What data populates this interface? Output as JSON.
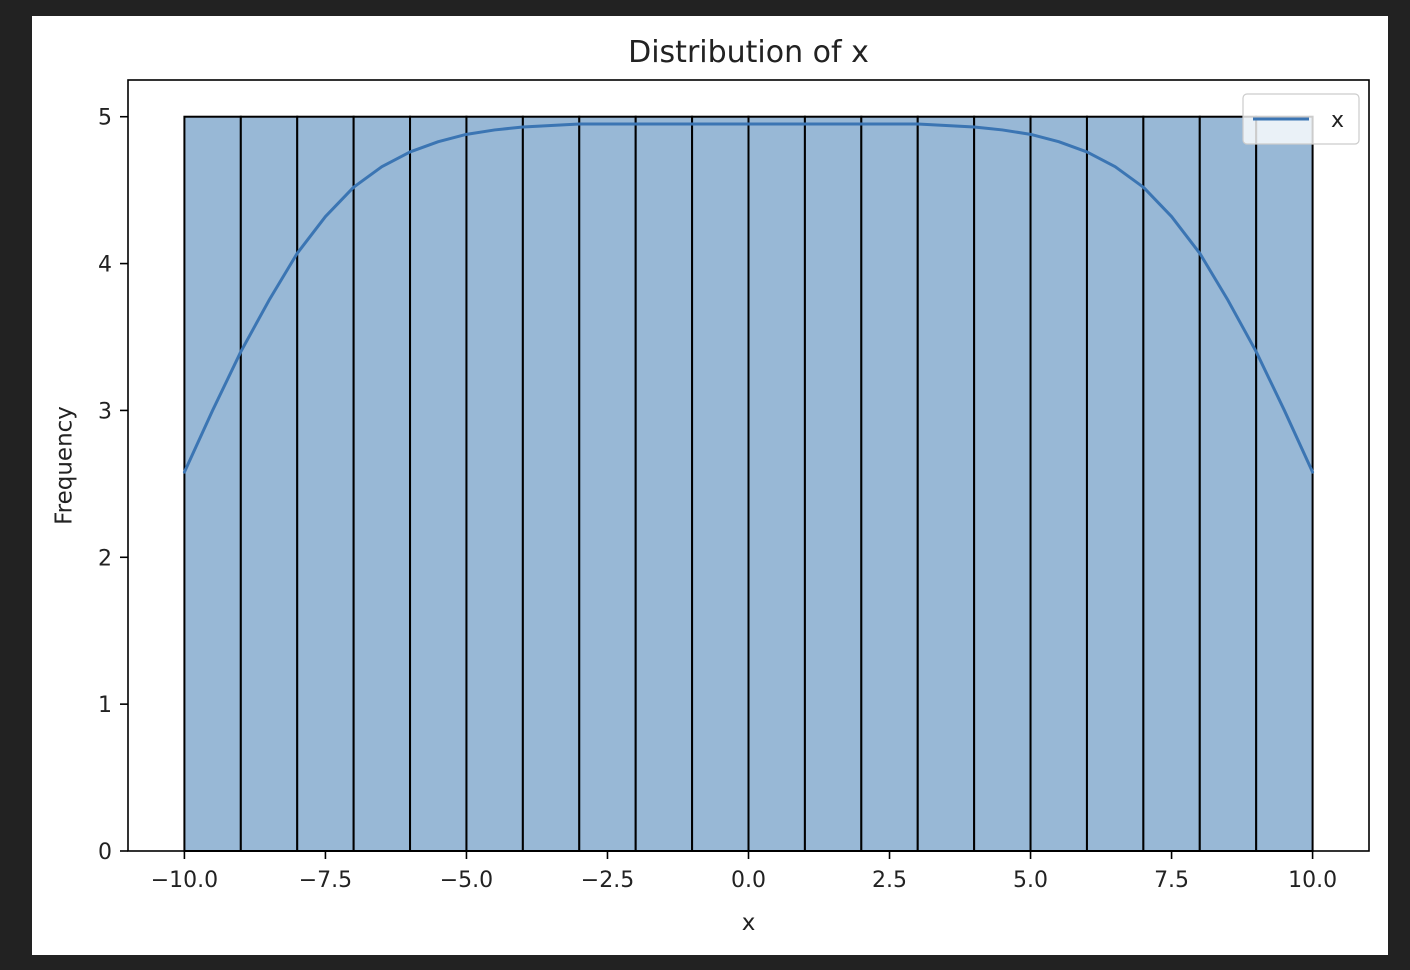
{
  "chart_data": {
    "type": "bar",
    "title": "Distribution of x",
    "xlabel": "x",
    "ylabel": "Frequency",
    "xlim": [
      -11.0,
      11.0
    ],
    "ylim": [
      0,
      5.25
    ],
    "x_ticks": [
      -10.0,
      -7.5,
      -5.0,
      -2.5,
      0.0,
      2.5,
      5.0,
      7.5,
      10.0
    ],
    "x_tick_labels": [
      "−10.0",
      "−7.5",
      "−5.0",
      "−2.5",
      "0.0",
      "2.5",
      "5.0",
      "7.5",
      "10.0"
    ],
    "y_ticks": [
      0,
      1,
      2,
      3,
      4,
      5
    ],
    "y_tick_labels": [
      "0",
      "1",
      "2",
      "3",
      "4",
      "5"
    ],
    "bins": {
      "edges": [
        -10,
        -9,
        -8,
        -7,
        -6,
        -5,
        -4,
        -3,
        -2,
        -1,
        0,
        1,
        2,
        3,
        4,
        5,
        6,
        7,
        8,
        9,
        10
      ],
      "counts": [
        5,
        5,
        5,
        5,
        5,
        5,
        5,
        5,
        5,
        5,
        5,
        5,
        5,
        5,
        5,
        5,
        5,
        5,
        5,
        5
      ]
    },
    "kde": {
      "name": "x",
      "x": [
        -10,
        -9.5,
        -9,
        -8.5,
        -8,
        -7.5,
        -7,
        -6.5,
        -6,
        -5.5,
        -5,
        -4.5,
        -4,
        -3,
        -2,
        -1,
        0,
        1,
        2,
        3,
        4,
        4.5,
        5,
        5.5,
        6,
        6.5,
        7,
        7.5,
        8,
        8.5,
        9,
        9.5,
        10
      ],
      "y": [
        2.58,
        3.0,
        3.4,
        3.75,
        4.07,
        4.32,
        4.52,
        4.66,
        4.76,
        4.83,
        4.88,
        4.91,
        4.93,
        4.95,
        4.95,
        4.95,
        4.95,
        4.95,
        4.95,
        4.95,
        4.93,
        4.91,
        4.88,
        4.83,
        4.76,
        4.66,
        4.52,
        4.32,
        4.07,
        3.75,
        3.4,
        3.0,
        2.58
      ]
    },
    "grid": false,
    "legend": {
      "position": "top-right",
      "entries": [
        "x"
      ]
    },
    "colors": {
      "bar_fill": "#98b8d6",
      "bar_edge": "#000000",
      "kde_line": "#3b75b3"
    }
  }
}
